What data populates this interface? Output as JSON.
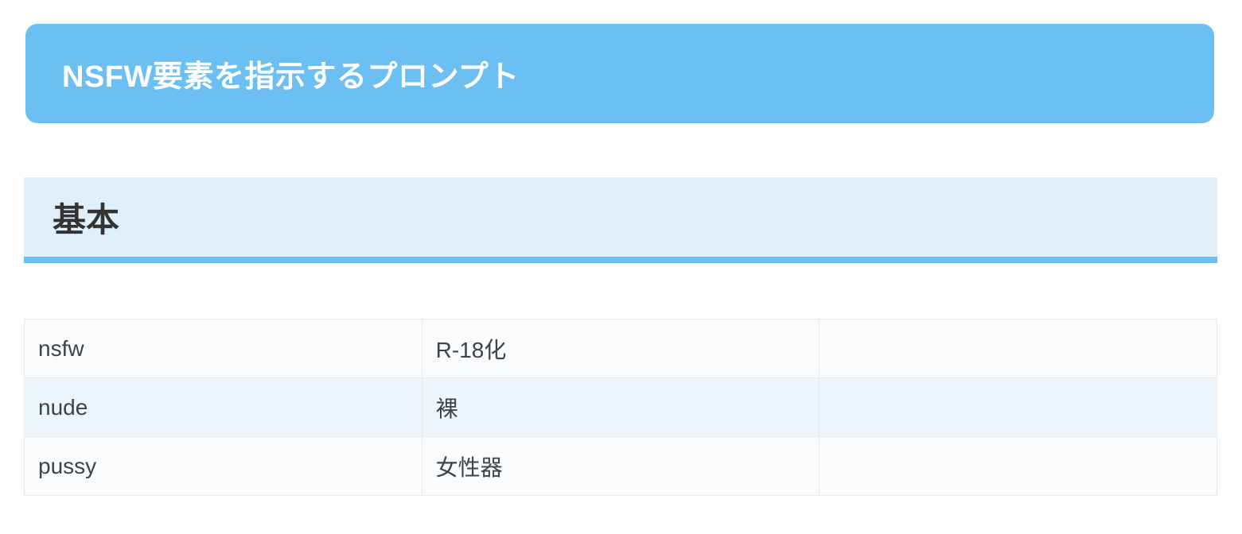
{
  "banner": {
    "title": "NSFW要素を指示するプロンプト",
    "bg_color": "#6cbff2",
    "text_color": "#ffffff"
  },
  "section": {
    "heading": "基本",
    "bg_color": "#dff0fa",
    "accent_border_color": "#6cbff2",
    "text_color": "#333333"
  },
  "table": {
    "column_count": 3,
    "odd_row_bg": "#fafbfd",
    "even_row_bg": "#eef6fb",
    "border_color": "#e6eaee",
    "text_color": "#3b434b",
    "rows": [
      {
        "prompt": "nsfw",
        "meaning": "R-18化",
        "note": ""
      },
      {
        "prompt": "nude",
        "meaning": "裸",
        "note": ""
      },
      {
        "prompt": "pussy",
        "meaning": "女性器",
        "note": ""
      }
    ]
  }
}
